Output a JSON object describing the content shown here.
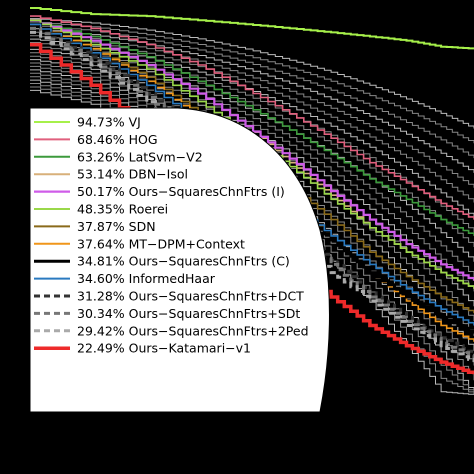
{
  "chart_data": {
    "type": "line",
    "title": "",
    "xlabel": "",
    "ylabel": "",
    "grid": false,
    "legend_placement": "bottom-left",
    "x_scale": "log",
    "xlim": [
      0.5,
      1
    ],
    "ylim": [
      0,
      1
    ],
    "series": [
      {
        "name": "94.73% VJ",
        "color": "#a6f04a",
        "style": "solid",
        "width": 2,
        "points": [
          [
            0.5,
            1.0
          ],
          [
            0.55,
            0.985
          ],
          [
            0.6,
            0.98
          ],
          [
            0.65,
            0.97
          ],
          [
            0.7,
            0.96
          ],
          [
            0.75,
            0.95
          ],
          [
            0.8,
            0.94
          ],
          [
            0.85,
            0.93
          ],
          [
            0.9,
            0.92
          ],
          [
            0.95,
            0.905
          ],
          [
            1.0,
            0.9
          ]
        ]
      },
      {
        "name": "68.46% HOG",
        "color": "#e0607e",
        "style": "solid",
        "width": 1.6,
        "points": [
          [
            0.5,
            0.98
          ],
          [
            0.55,
            0.95
          ],
          [
            0.6,
            0.91
          ],
          [
            0.65,
            0.86
          ],
          [
            0.7,
            0.8
          ],
          [
            0.75,
            0.74
          ],
          [
            0.8,
            0.68
          ],
          [
            0.85,
            0.62
          ],
          [
            0.9,
            0.57
          ],
          [
            0.95,
            0.52
          ],
          [
            1.0,
            0.48
          ]
        ]
      },
      {
        "name": "63.26% LatSvm−V2",
        "color": "#3c9a3c",
        "style": "solid",
        "width": 1.6,
        "points": [
          [
            0.5,
            0.97
          ],
          [
            0.55,
            0.93
          ],
          [
            0.6,
            0.88
          ],
          [
            0.65,
            0.82
          ],
          [
            0.7,
            0.76
          ],
          [
            0.75,
            0.7
          ],
          [
            0.8,
            0.64
          ],
          [
            0.85,
            0.58
          ],
          [
            0.9,
            0.53
          ],
          [
            0.95,
            0.48
          ],
          [
            1.0,
            0.44
          ]
        ]
      },
      {
        "name": "53.14% DBN−Isol",
        "color": "#d8b07a",
        "style": "solid",
        "width": 1.6,
        "points": [
          [
            0.5,
            0.97
          ],
          [
            0.55,
            0.92
          ],
          [
            0.6,
            0.86
          ],
          [
            0.65,
            0.79
          ],
          [
            0.7,
            0.71
          ],
          [
            0.75,
            0.62
          ],
          [
            0.8,
            0.54
          ],
          [
            0.85,
            0.46
          ],
          [
            0.9,
            0.4
          ],
          [
            0.95,
            0.35
          ],
          [
            1.0,
            0.31
          ]
        ]
      },
      {
        "name": "50.17% Ours−SquaresChnFtrs (I)",
        "color": "#cf5ce8",
        "style": "solid",
        "width": 2.2,
        "points": [
          [
            0.5,
            0.97
          ],
          [
            0.55,
            0.92
          ],
          [
            0.6,
            0.86
          ],
          [
            0.65,
            0.79
          ],
          [
            0.7,
            0.71
          ],
          [
            0.75,
            0.63
          ],
          [
            0.8,
            0.55
          ],
          [
            0.85,
            0.48
          ],
          [
            0.9,
            0.42
          ],
          [
            0.95,
            0.37
          ],
          [
            1.0,
            0.33
          ]
        ]
      },
      {
        "name": "48.35% Roerei",
        "color": "#9ad84a",
        "style": "solid",
        "width": 1.6,
        "points": [
          [
            0.5,
            0.97
          ],
          [
            0.55,
            0.91
          ],
          [
            0.6,
            0.85
          ],
          [
            0.65,
            0.77
          ],
          [
            0.7,
            0.69
          ],
          [
            0.75,
            0.61
          ],
          [
            0.8,
            0.53
          ],
          [
            0.85,
            0.46
          ],
          [
            0.9,
            0.4
          ],
          [
            0.95,
            0.35
          ],
          [
            1.0,
            0.31
          ]
        ]
      },
      {
        "name": "37.87% SDN",
        "color": "#8a6a1a",
        "style": "solid",
        "width": 1.6,
        "points": [
          [
            0.5,
            0.96
          ],
          [
            0.55,
            0.9
          ],
          [
            0.6,
            0.83
          ],
          [
            0.65,
            0.74
          ],
          [
            0.7,
            0.65
          ],
          [
            0.75,
            0.56
          ],
          [
            0.8,
            0.48
          ],
          [
            0.85,
            0.4
          ],
          [
            0.9,
            0.34
          ],
          [
            0.95,
            0.29
          ],
          [
            1.0,
            0.25
          ]
        ]
      },
      {
        "name": "37.64% MT−DPM+Context",
        "color": "#f0961a",
        "style": "solid",
        "width": 1.6,
        "points": [
          [
            0.5,
            0.96
          ],
          [
            0.55,
            0.9
          ],
          [
            0.6,
            0.82
          ],
          [
            0.65,
            0.73
          ],
          [
            0.7,
            0.63
          ],
          [
            0.75,
            0.53
          ],
          [
            0.8,
            0.43
          ],
          [
            0.85,
            0.35
          ],
          [
            0.9,
            0.28
          ],
          [
            0.95,
            0.22
          ],
          [
            1.0,
            0.18
          ]
        ]
      },
      {
        "name": "34.81% Ours−SquaresChnFtrs (C)",
        "color": "#000000",
        "style": "solid",
        "width": 3,
        "points": [
          [
            0.5,
            0.96
          ],
          [
            0.55,
            0.89
          ],
          [
            0.6,
            0.81
          ],
          [
            0.65,
            0.72
          ],
          [
            0.7,
            0.62
          ],
          [
            0.75,
            0.52
          ],
          [
            0.8,
            0.43
          ],
          [
            0.85,
            0.35
          ],
          [
            0.9,
            0.29
          ],
          [
            0.95,
            0.24
          ],
          [
            1.0,
            0.2
          ]
        ]
      },
      {
        "name": "34.60% InformedHaar",
        "color": "#2a7ac0",
        "style": "solid",
        "width": 1.6,
        "points": [
          [
            0.5,
            0.96
          ],
          [
            0.55,
            0.89
          ],
          [
            0.6,
            0.81
          ],
          [
            0.65,
            0.72
          ],
          [
            0.7,
            0.62
          ],
          [
            0.75,
            0.52
          ],
          [
            0.8,
            0.44
          ],
          [
            0.85,
            0.37
          ],
          [
            0.9,
            0.31
          ],
          [
            0.95,
            0.26
          ],
          [
            1.0,
            0.22
          ]
        ]
      },
      {
        "name": "31.28% Ours−SquaresChnFtrs+DCT",
        "color": "#333333",
        "style": "dashed",
        "width": 3,
        "points": [
          [
            0.5,
            0.95
          ],
          [
            0.55,
            0.88
          ],
          [
            0.6,
            0.79
          ],
          [
            0.65,
            0.69
          ],
          [
            0.7,
            0.58
          ],
          [
            0.75,
            0.47
          ],
          [
            0.8,
            0.38
          ],
          [
            0.85,
            0.3
          ],
          [
            0.9,
            0.24
          ],
          [
            0.95,
            0.19
          ],
          [
            1.0,
            0.15
          ]
        ]
      },
      {
        "name": "30.34% Ours−SquaresChnFtrs+SDt",
        "color": "#777777",
        "style": "dashed",
        "width": 3,
        "points": [
          [
            0.5,
            0.95
          ],
          [
            0.55,
            0.87
          ],
          [
            0.6,
            0.78
          ],
          [
            0.65,
            0.68
          ],
          [
            0.7,
            0.57
          ],
          [
            0.75,
            0.46
          ],
          [
            0.8,
            0.37
          ],
          [
            0.85,
            0.29
          ],
          [
            0.9,
            0.23
          ],
          [
            0.95,
            0.18
          ],
          [
            1.0,
            0.14
          ]
        ]
      },
      {
        "name": "29.42% Ours−SquaresChnFtrs+2Ped",
        "color": "#aaaaaa",
        "style": "dashed",
        "width": 3,
        "points": [
          [
            0.5,
            0.94
          ],
          [
            0.55,
            0.86
          ],
          [
            0.6,
            0.77
          ],
          [
            0.65,
            0.66
          ],
          [
            0.7,
            0.55
          ],
          [
            0.75,
            0.44
          ],
          [
            0.8,
            0.35
          ],
          [
            0.85,
            0.28
          ],
          [
            0.9,
            0.22
          ],
          [
            0.95,
            0.17
          ],
          [
            1.0,
            0.13
          ]
        ]
      },
      {
        "name": "22.49% Ours−Katamari−v1",
        "color": "#ee2a2a",
        "style": "solid",
        "width": 3.5,
        "points": [
          [
            0.5,
            0.91
          ],
          [
            0.55,
            0.81
          ],
          [
            0.6,
            0.7
          ],
          [
            0.65,
            0.58
          ],
          [
            0.7,
            0.47
          ],
          [
            0.75,
            0.37
          ],
          [
            0.8,
            0.29
          ],
          [
            0.85,
            0.22
          ],
          [
            0.9,
            0.17
          ],
          [
            0.95,
            0.13
          ],
          [
            1.0,
            0.1
          ]
        ]
      }
    ],
    "background_color": "#000000",
    "plot_color": "#000000",
    "legend_color": "#ffffff"
  }
}
